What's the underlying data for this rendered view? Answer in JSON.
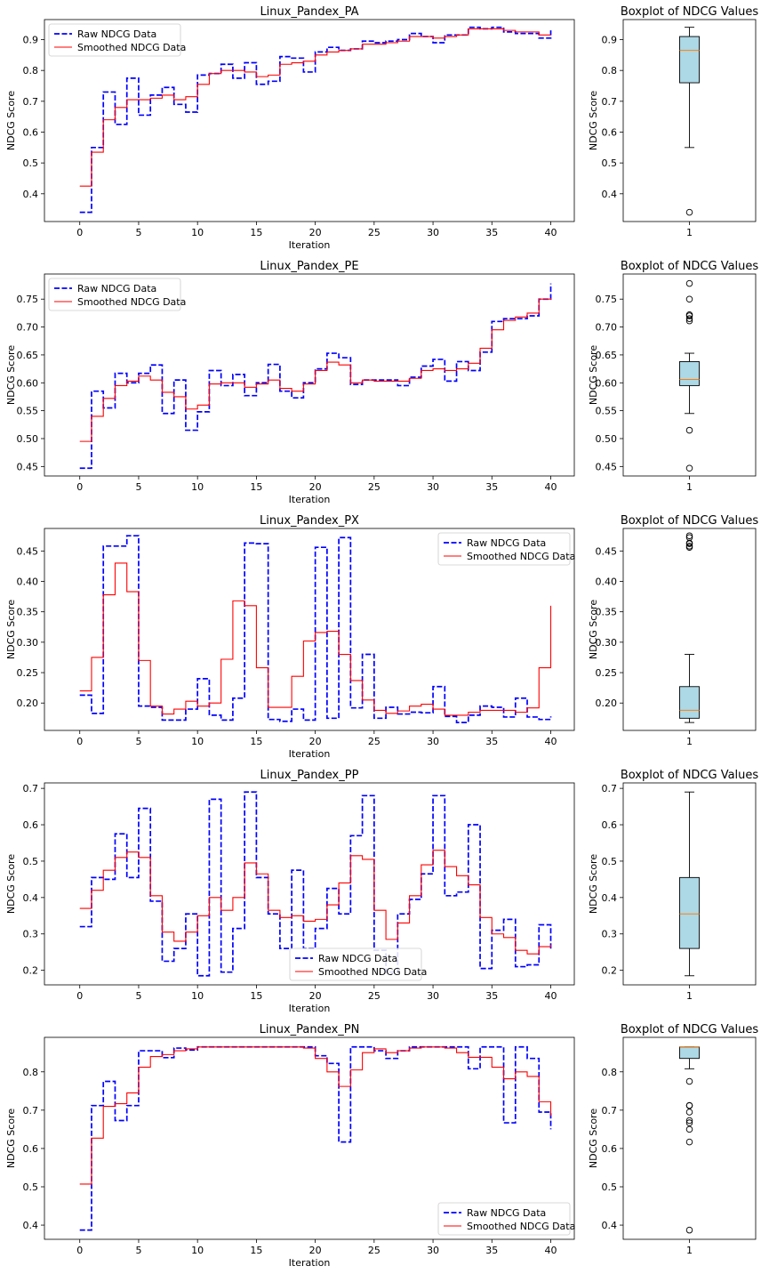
{
  "chart_data": [
    {
      "type": "line",
      "title": "Linux_Pandex_PA",
      "xlabel": "Iteration",
      "ylabel": "NDCG Score",
      "xlim": [
        -3,
        42
      ],
      "ylim": [
        0.31,
        0.965
      ],
      "xticks": [
        0,
        5,
        10,
        15,
        20,
        25,
        30,
        35,
        40
      ],
      "yticks": [
        0.4,
        0.5,
        0.6,
        0.7,
        0.8,
        0.9
      ],
      "ytick_labels": [
        "0.4",
        "0.5",
        "0.6",
        "0.7",
        "0.8",
        "0.9"
      ],
      "legend_position": "upper-left",
      "series": [
        {
          "name": "Raw NDCG Data",
          "color": "#0000ff",
          "style": "dashed",
          "values": [
            0.34,
            0.55,
            0.73,
            0.625,
            0.775,
            0.655,
            0.72,
            0.745,
            0.69,
            0.665,
            0.785,
            0.79,
            0.82,
            0.775,
            0.825,
            0.755,
            0.765,
            0.845,
            0.84,
            0.795,
            0.86,
            0.875,
            0.865,
            0.87,
            0.895,
            0.89,
            0.895,
            0.9,
            0.92,
            0.91,
            0.89,
            0.915,
            0.915,
            0.94,
            0.935,
            0.94,
            0.925,
            0.92,
            0.92,
            0.905,
            0.93
          ]
        },
        {
          "name": "Smoothed NDCG Data",
          "color": "#ff0000",
          "style": "solid",
          "values": [
            0.425,
            0.535,
            0.64,
            0.68,
            0.705,
            0.705,
            0.71,
            0.72,
            0.705,
            0.715,
            0.755,
            0.79,
            0.8,
            0.8,
            0.795,
            0.78,
            0.785,
            0.82,
            0.825,
            0.83,
            0.85,
            0.86,
            0.865,
            0.87,
            0.885,
            0.885,
            0.89,
            0.895,
            0.91,
            0.91,
            0.905,
            0.91,
            0.915,
            0.935,
            0.935,
            0.935,
            0.93,
            0.925,
            0.925,
            0.915,
            0.915
          ]
        }
      ],
      "boxplot": {
        "title": "Boxplot of NDCG Values",
        "category": "1",
        "ylim": [
          0.31,
          0.965
        ],
        "yticks": [
          0.4,
          0.5,
          0.6,
          0.7,
          0.8,
          0.9
        ],
        "ytick_labels": [
          "0.4",
          "0.5",
          "0.6",
          "0.7",
          "0.8",
          "0.9"
        ],
        "q1": 0.76,
        "median": 0.865,
        "q3": 0.91,
        "whisker_low": 0.55,
        "whisker_high": 0.94,
        "outliers": [
          0.34
        ]
      }
    },
    {
      "type": "line",
      "title": "Linux_Pandex_PE",
      "xlabel": "Iteration",
      "ylabel": "NDCG Score",
      "xlim": [
        -3,
        42
      ],
      "ylim": [
        0.433,
        0.795
      ],
      "xticks": [
        0,
        5,
        10,
        15,
        20,
        25,
        30,
        35,
        40
      ],
      "yticks": [
        0.45,
        0.5,
        0.55,
        0.6,
        0.65,
        0.7,
        0.75
      ],
      "ytick_labels": [
        "0.45",
        "0.50",
        "0.55",
        "0.60",
        "0.65",
        "0.70",
        "0.75"
      ],
      "legend_position": "upper-left",
      "series": [
        {
          "name": "Raw NDCG Data",
          "color": "#0000ff",
          "style": "dashed",
          "values": [
            0.447,
            0.585,
            0.555,
            0.617,
            0.6,
            0.617,
            0.632,
            0.545,
            0.605,
            0.515,
            0.548,
            0.622,
            0.595,
            0.615,
            0.577,
            0.6,
            0.633,
            0.585,
            0.573,
            0.6,
            0.625,
            0.653,
            0.645,
            0.597,
            0.605,
            0.605,
            0.605,
            0.595,
            0.61,
            0.63,
            0.642,
            0.603,
            0.638,
            0.622,
            0.655,
            0.71,
            0.715,
            0.715,
            0.72,
            0.75,
            0.778
          ]
        },
        {
          "name": "Smoothed NDCG Data",
          "color": "#ff0000",
          "style": "solid",
          "values": [
            0.495,
            0.54,
            0.572,
            0.595,
            0.603,
            0.612,
            0.605,
            0.583,
            0.575,
            0.553,
            0.56,
            0.598,
            0.6,
            0.6,
            0.592,
            0.598,
            0.605,
            0.59,
            0.585,
            0.598,
            0.622,
            0.637,
            0.632,
            0.6,
            0.605,
            0.603,
            0.603,
            0.603,
            0.608,
            0.622,
            0.625,
            0.622,
            0.625,
            0.635,
            0.662,
            0.695,
            0.712,
            0.718,
            0.725,
            0.75,
            0.752
          ]
        }
      ],
      "boxplot": {
        "title": "Boxplot of NDCG Values",
        "category": "1",
        "ylim": [
          0.433,
          0.795
        ],
        "yticks": [
          0.45,
          0.5,
          0.55,
          0.6,
          0.65,
          0.7,
          0.75
        ],
        "ytick_labels": [
          "0.45",
          "0.50",
          "0.55",
          "0.60",
          "0.65",
          "0.70",
          "0.75"
        ],
        "q1": 0.595,
        "median": 0.606,
        "q3": 0.638,
        "whisker_low": 0.545,
        "whisker_high": 0.653,
        "outliers": [
          0.447,
          0.515,
          0.711,
          0.715,
          0.72,
          0.722,
          0.75,
          0.778
        ]
      }
    },
    {
      "type": "line",
      "title": "Linux_Pandex_PX",
      "xlabel": "Iteration",
      "ylabel": "NDCG Score",
      "xlim": [
        -3,
        42
      ],
      "ylim": [
        0.155,
        0.487
      ],
      "xticks": [
        0,
        5,
        10,
        15,
        20,
        25,
        30,
        35,
        40
      ],
      "yticks": [
        0.2,
        0.25,
        0.3,
        0.35,
        0.4,
        0.45
      ],
      "ytick_labels": [
        "0.20",
        "0.25",
        "0.30",
        "0.35",
        "0.40",
        "0.45"
      ],
      "legend_position": "upper-right",
      "series": [
        {
          "name": "Raw NDCG Data",
          "color": "#0000ff",
          "style": "dashed",
          "values": [
            0.213,
            0.183,
            0.458,
            0.458,
            0.475,
            0.195,
            0.193,
            0.172,
            0.172,
            0.19,
            0.24,
            0.18,
            0.172,
            0.208,
            0.463,
            0.462,
            0.173,
            0.17,
            0.19,
            0.172,
            0.456,
            0.175,
            0.472,
            0.192,
            0.28,
            0.175,
            0.193,
            0.182,
            0.185,
            0.184,
            0.227,
            0.178,
            0.168,
            0.18,
            0.195,
            0.193,
            0.177,
            0.208,
            0.177,
            0.173,
            0.178
          ]
        },
        {
          "name": "Smoothed NDCG Data",
          "color": "#ff0000",
          "style": "solid",
          "values": [
            0.22,
            0.275,
            0.378,
            0.43,
            0.383,
            0.27,
            0.195,
            0.182,
            0.19,
            0.203,
            0.195,
            0.2,
            0.272,
            0.368,
            0.36,
            0.258,
            0.193,
            0.193,
            0.244,
            0.302,
            0.316,
            0.318,
            0.28,
            0.237,
            0.205,
            0.188,
            0.183,
            0.187,
            0.195,
            0.198,
            0.19,
            0.18,
            0.18,
            0.185,
            0.188,
            0.188,
            0.188,
            0.185,
            0.192,
            0.258,
            0.36
          ]
        }
      ],
      "boxplot": {
        "title": "Boxplot of NDCG Values",
        "category": "1",
        "ylim": [
          0.155,
          0.487
        ],
        "yticks": [
          0.2,
          0.25,
          0.3,
          0.35,
          0.4,
          0.45
        ],
        "ytick_labels": [
          "0.20",
          "0.25",
          "0.30",
          "0.35",
          "0.40",
          "0.45"
        ],
        "q1": 0.175,
        "median": 0.188,
        "q3": 0.227,
        "whisker_low": 0.168,
        "whisker_high": 0.28,
        "outliers": [
          0.456,
          0.458,
          0.462,
          0.463,
          0.472,
          0.475
        ]
      }
    },
    {
      "type": "line",
      "title": "Linux_Pandex_PP",
      "xlabel": "Iteration",
      "ylabel": "NDCG Score",
      "xlim": [
        -3,
        42
      ],
      "ylim": [
        0.16,
        0.715
      ],
      "xticks": [
        0,
        5,
        10,
        15,
        20,
        25,
        30,
        35,
        40
      ],
      "yticks": [
        0.2,
        0.3,
        0.4,
        0.5,
        0.6,
        0.7
      ],
      "ytick_labels": [
        "0.2",
        "0.3",
        "0.4",
        "0.5",
        "0.6",
        "0.7"
      ],
      "legend_position": "lower-center",
      "series": [
        {
          "name": "Raw NDCG Data",
          "color": "#0000ff",
          "style": "dashed",
          "values": [
            0.32,
            0.455,
            0.45,
            0.575,
            0.455,
            0.645,
            0.39,
            0.225,
            0.26,
            0.355,
            0.185,
            0.67,
            0.195,
            0.315,
            0.69,
            0.455,
            0.355,
            0.26,
            0.475,
            0.26,
            0.315,
            0.425,
            0.355,
            0.57,
            0.68,
            0.255,
            0.195,
            0.355,
            0.395,
            0.465,
            0.68,
            0.405,
            0.415,
            0.6,
            0.205,
            0.31,
            0.34,
            0.21,
            0.215,
            0.325,
            0.255
          ]
        },
        {
          "name": "Smoothed NDCG Data",
          "color": "#ff0000",
          "style": "solid",
          "values": [
            0.37,
            0.42,
            0.475,
            0.51,
            0.525,
            0.51,
            0.405,
            0.305,
            0.28,
            0.305,
            0.35,
            0.4,
            0.365,
            0.4,
            0.495,
            0.465,
            0.365,
            0.345,
            0.35,
            0.335,
            0.34,
            0.38,
            0.44,
            0.515,
            0.505,
            0.365,
            0.285,
            0.33,
            0.405,
            0.49,
            0.53,
            0.485,
            0.46,
            0.435,
            0.345,
            0.3,
            0.29,
            0.255,
            0.245,
            0.265,
            0.27
          ]
        }
      ],
      "boxplot": {
        "title": "Boxplot of NDCG Values",
        "category": "1",
        "ylim": [
          0.16,
          0.715
        ],
        "yticks": [
          0.2,
          0.3,
          0.4,
          0.5,
          0.6,
          0.7
        ],
        "ytick_labels": [
          "0.2",
          "0.3",
          "0.4",
          "0.5",
          "0.6",
          "0.7"
        ],
        "q1": 0.26,
        "median": 0.355,
        "q3": 0.455,
        "whisker_low": 0.185,
        "whisker_high": 0.69,
        "outliers": []
      }
    },
    {
      "type": "line",
      "title": "Linux_Pandex_PN",
      "xlabel": "Iteration",
      "ylabel": "NDCG Score",
      "xlim": [
        -3,
        42
      ],
      "ylim": [
        0.363,
        0.89
      ],
      "xticks": [
        0,
        5,
        10,
        15,
        20,
        25,
        30,
        35,
        40
      ],
      "yticks": [
        0.4,
        0.5,
        0.6,
        0.7,
        0.8
      ],
      "ytick_labels": [
        "0.4",
        "0.5",
        "0.6",
        "0.7",
        "0.8"
      ],
      "legend_position": "lower-right",
      "series": [
        {
          "name": "Raw NDCG Data",
          "color": "#0000ff",
          "style": "dashed",
          "values": [
            0.387,
            0.712,
            0.775,
            0.673,
            0.712,
            0.855,
            0.855,
            0.837,
            0.862,
            0.857,
            0.865,
            0.865,
            0.865,
            0.865,
            0.865,
            0.865,
            0.865,
            0.865,
            0.865,
            0.865,
            0.842,
            0.822,
            0.617,
            0.865,
            0.865,
            0.855,
            0.835,
            0.855,
            0.865,
            0.865,
            0.865,
            0.865,
            0.865,
            0.808,
            0.865,
            0.865,
            0.667,
            0.865,
            0.835,
            0.695,
            0.65
          ]
        },
        {
          "name": "Smoothed NDCG Data",
          "color": "#ff0000",
          "style": "solid",
          "values": [
            0.507,
            0.627,
            0.71,
            0.717,
            0.745,
            0.812,
            0.84,
            0.845,
            0.855,
            0.86,
            0.865,
            0.865,
            0.865,
            0.865,
            0.865,
            0.865,
            0.865,
            0.865,
            0.865,
            0.862,
            0.835,
            0.8,
            0.762,
            0.805,
            0.85,
            0.86,
            0.85,
            0.855,
            0.862,
            0.865,
            0.865,
            0.862,
            0.85,
            0.838,
            0.838,
            0.812,
            0.782,
            0.8,
            0.788,
            0.722,
            0.685
          ]
        }
      ],
      "boxplot": {
        "title": "Boxplot of NDCG Values",
        "category": "1",
        "ylim": [
          0.363,
          0.89
        ],
        "yticks": [
          0.4,
          0.5,
          0.6,
          0.7,
          0.8
        ],
        "ytick_labels": [
          "0.4",
          "0.5",
          "0.6",
          "0.7",
          "0.8"
        ],
        "q1": 0.835,
        "median": 0.865,
        "q3": 0.865,
        "whisker_low": 0.808,
        "whisker_high": 0.865,
        "outliers": [
          0.387,
          0.617,
          0.65,
          0.667,
          0.673,
          0.695,
          0.712,
          0.712,
          0.775
        ]
      }
    }
  ],
  "colors": {
    "box_fill": "#add8e6",
    "median_line": "#ff7f0e",
    "raw": "#0000ff",
    "smoothed": "#ff0000"
  }
}
